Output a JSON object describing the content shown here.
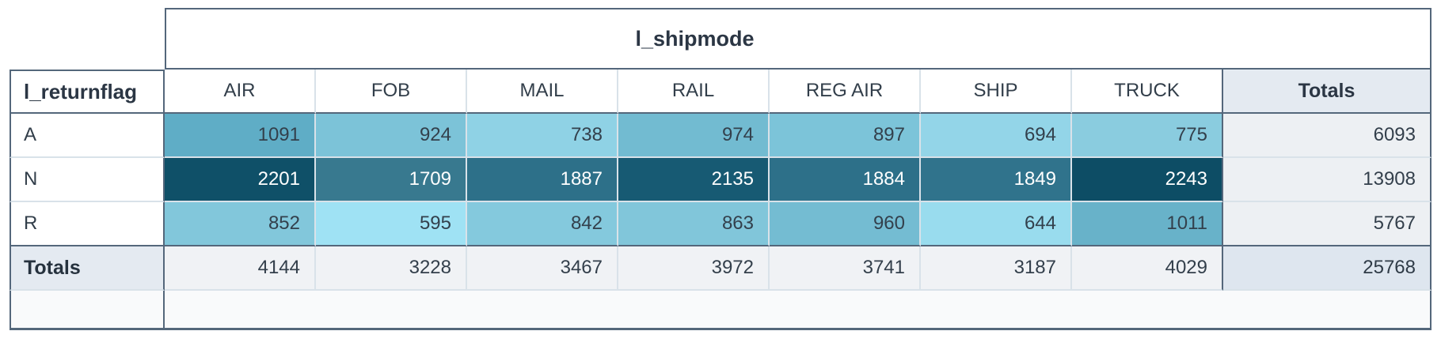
{
  "theme": {
    "border_dark": "#54677b",
    "border_light": "#d9e2e9",
    "text_dark": "#333f4b",
    "text_light": "#ffffff",
    "totals_header_bg": "#e4eaf1",
    "totals_col_bg": "#edf0f3",
    "totals_row_bg": "#f0f2f5",
    "grand_total_bg": "#dee6ef",
    "footer_strip_bg": "#f9fafb",
    "heat_min_color": "#9fe2f4",
    "heat_max_color": "#0d4d65"
  },
  "pivot": {
    "column_dimension_label": "l_shipmode",
    "row_dimension_label": "l_returnflag",
    "column_headers": [
      "AIR",
      "FOB",
      "MAIL",
      "RAIL",
      "REG AIR",
      "SHIP",
      "TRUCK"
    ],
    "totals_label": "Totals",
    "rows": [
      {
        "label": "A",
        "values": [
          1091,
          924,
          738,
          974,
          897,
          694,
          775
        ],
        "row_total": 6093,
        "cell_colors": [
          "#5fadc6",
          "#7cc3d8",
          "#8fd2e5",
          "#72bbd1",
          "#7cc4d9",
          "#93d5e8",
          "#8accdf"
        ],
        "text_colors": [
          "#33404c",
          "#33404c",
          "#33404c",
          "#33404c",
          "#33404c",
          "#33404c",
          "#33404c"
        ]
      },
      {
        "label": "N",
        "values": [
          2201,
          1709,
          1887,
          2135,
          1884,
          1849,
          2243
        ],
        "row_total": 13908,
        "cell_colors": [
          "#0f5068",
          "#38798f",
          "#2d7089",
          "#175a73",
          "#2d7089",
          "#30738c",
          "#0d4d65"
        ],
        "text_colors": [
          "#ffffff",
          "#ffffff",
          "#ffffff",
          "#ffffff",
          "#ffffff",
          "#ffffff",
          "#ffffff"
        ]
      },
      {
        "label": "R",
        "values": [
          852,
          595,
          842,
          863,
          960,
          644,
          1011
        ],
        "row_total": 5767,
        "cell_colors": [
          "#82c7db",
          "#9fe2f4",
          "#84c9dd",
          "#81c6da",
          "#74bcd2",
          "#99dcee",
          "#68b2c9"
        ],
        "text_colors": [
          "#33404c",
          "#33404c",
          "#33404c",
          "#33404c",
          "#33404c",
          "#33404c",
          "#33404c"
        ]
      }
    ],
    "totals_row": {
      "label": "Totals",
      "values": [
        4144,
        3228,
        3467,
        3972,
        3741,
        3187,
        4029
      ],
      "grand_total": 25768
    }
  },
  "chart_data": {
    "type": "heatmap",
    "title": "Pivot table: l_shipmode by l_returnflag (cell counts with heatmap conditional formatting)",
    "x_dimension": "l_shipmode",
    "y_dimension": "l_returnflag",
    "columns": [
      "AIR",
      "FOB",
      "MAIL",
      "RAIL",
      "REG AIR",
      "SHIP",
      "TRUCK"
    ],
    "rows": [
      "A",
      "N",
      "R"
    ],
    "values": [
      [
        1091,
        924,
        738,
        974,
        897,
        694,
        775
      ],
      [
        2201,
        1709,
        1887,
        2135,
        1884,
        1849,
        2243
      ],
      [
        852,
        595,
        842,
        863,
        960,
        644,
        1011
      ]
    ],
    "row_totals": [
      6093,
      13908,
      5767
    ],
    "column_totals": [
      4144,
      3228,
      3467,
      3972,
      3741,
      3187,
      4029
    ],
    "grand_total": 25768,
    "value_range": [
      595,
      2243
    ],
    "color_range": [
      "#9fe2f4",
      "#0d4d65"
    ],
    "legend": "none",
    "grid": "on"
  }
}
